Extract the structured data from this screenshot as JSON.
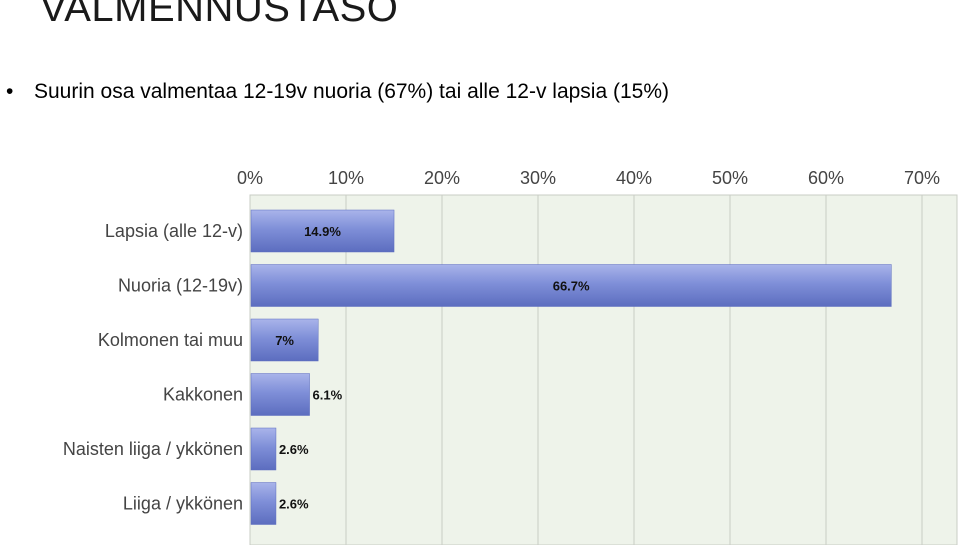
{
  "slide": {
    "title": "VALMENNUSTASO",
    "bullet_marker": "•",
    "bullet": "Suurin osa valmentaa 12-19v nuoria (67%) tai alle 12-v lapsia (15%)"
  },
  "colors": {
    "bar": "#7f8fd8",
    "bar_top": "#a9b4ea",
    "bar_bottom": "#5c6dbf",
    "plot_bg": "#eef3ea",
    "grid": "#c8cdc4",
    "axis_text": "#444444"
  },
  "chart_data": {
    "type": "bar",
    "orientation": "horizontal",
    "categories": [
      "Lapsia (alle 12-v)",
      "Nuoria (12-19v)",
      "Kolmonen tai muu",
      "Kakkonen",
      "Naisten liiga / ykkönen",
      "Liiga / ykkönen"
    ],
    "values": [
      14.9,
      66.7,
      7,
      6.1,
      2.6,
      2.6
    ],
    "value_labels": [
      "14.9%",
      "66.7%",
      "7%",
      "6.1%",
      "2.6%",
      "2.6%"
    ],
    "x_ticks": [
      0,
      10,
      20,
      30,
      40,
      50,
      60,
      70
    ],
    "x_tick_labels": [
      "0%",
      "10%",
      "20%",
      "30%",
      "40%",
      "50%",
      "60%",
      "70%"
    ],
    "xlim": [
      0,
      73
    ],
    "axis_position": "top",
    "grid": true,
    "legend": "none"
  }
}
